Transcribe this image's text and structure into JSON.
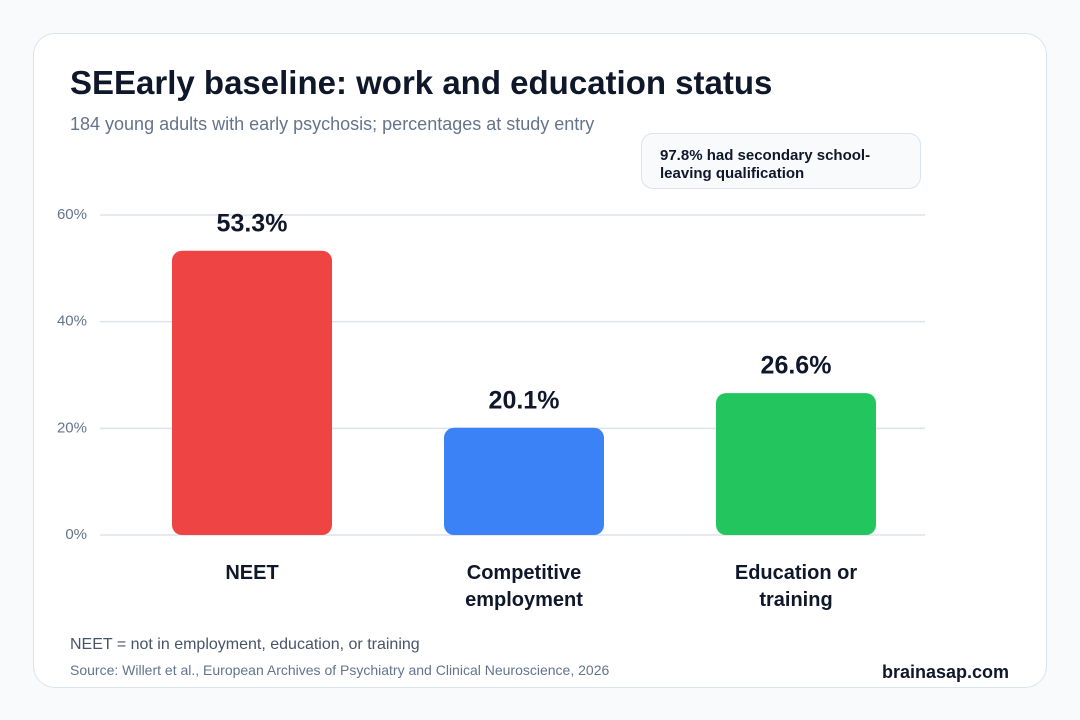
{
  "chart_data": {
    "type": "bar",
    "title": "SEEarly baseline: work and education status",
    "subtitle": "184 young adults with early psychosis; percentages at study entry",
    "annotation": "97.8% had secondary school-leaving qualification",
    "categories": [
      "NEET",
      "Competitive employment",
      "Education or training"
    ],
    "values": [
      53.3,
      20.1,
      26.6
    ],
    "value_labels": [
      "53.3%",
      "20.1%",
      "26.6%"
    ],
    "colors": [
      "#ef4444",
      "#3b82f6",
      "#22c55e"
    ],
    "ylim": [
      0,
      60
    ],
    "yticks": [
      {
        "value": 0,
        "label": "0%"
      },
      {
        "value": 20,
        "label": "20%"
      },
      {
        "value": 40,
        "label": "40%"
      },
      {
        "value": 60,
        "label": "60%"
      }
    ],
    "grid": true,
    "footnote": "NEET = not in employment, education, or training",
    "source": "Source: Willert et al., European Archives of Psychiatry and Clinical Neuroscience, 2026",
    "brand": "brainasap.com"
  }
}
